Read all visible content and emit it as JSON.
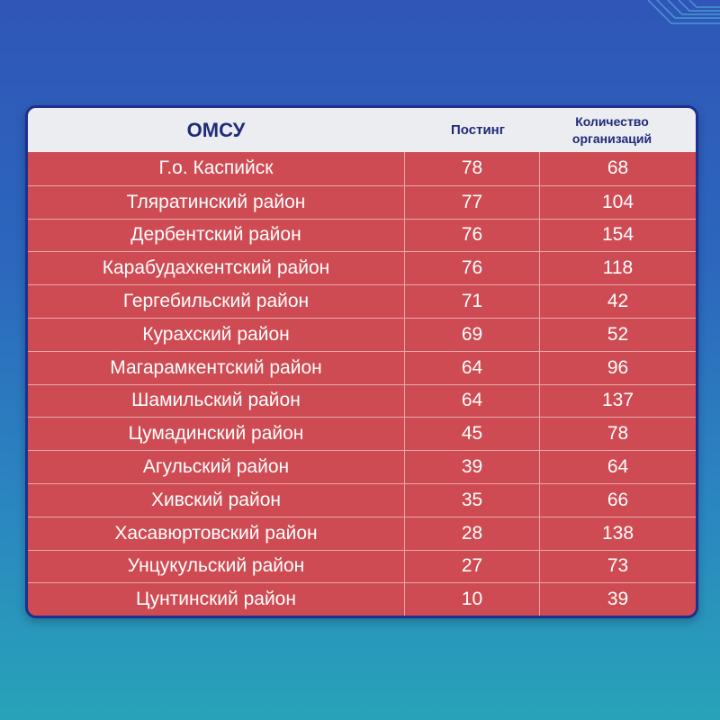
{
  "table": {
    "headers": {
      "omsu": "ОМСУ",
      "posting": "Постинг",
      "orgs_line1": "Количество",
      "orgs_line2": "организаций"
    },
    "rows": [
      {
        "name": "Г.о. Каспийск",
        "posting": "78",
        "orgs": "68"
      },
      {
        "name": "Тляратинский район",
        "posting": "77",
        "orgs": "104"
      },
      {
        "name": "Дербентский район",
        "posting": "76",
        "orgs": "154"
      },
      {
        "name": "Карабудахкентский район",
        "posting": "76",
        "orgs": "118"
      },
      {
        "name": "Гергебильский район",
        "posting": "71",
        "orgs": "42"
      },
      {
        "name": "Курахский район",
        "posting": "69",
        "orgs": "52"
      },
      {
        "name": "Магарамкентский район",
        "posting": "64",
        "orgs": "96"
      },
      {
        "name": "Шамильский район",
        "posting": "64",
        "orgs": "137"
      },
      {
        "name": "Цумадинский район",
        "posting": "45",
        "orgs": "78"
      },
      {
        "name": "Агульский район",
        "posting": "39",
        "orgs": "64"
      },
      {
        "name": "Хивский район",
        "posting": "35",
        "orgs": "66"
      },
      {
        "name": "Хасавюртовский район",
        "posting": "28",
        "orgs": "138"
      },
      {
        "name": "Унцукульский район",
        "posting": "27",
        "orgs": "73"
      },
      {
        "name": "Цунтинский район",
        "posting": "10",
        "orgs": "39"
      }
    ]
  },
  "colors": {
    "background_top": "#2f56b8",
    "background_bottom": "#27a3b8",
    "row_fill": "#cf4b53",
    "header_fill": "#ecedf0",
    "header_text": "#1f2a7a",
    "border": "#1e2f8f"
  }
}
